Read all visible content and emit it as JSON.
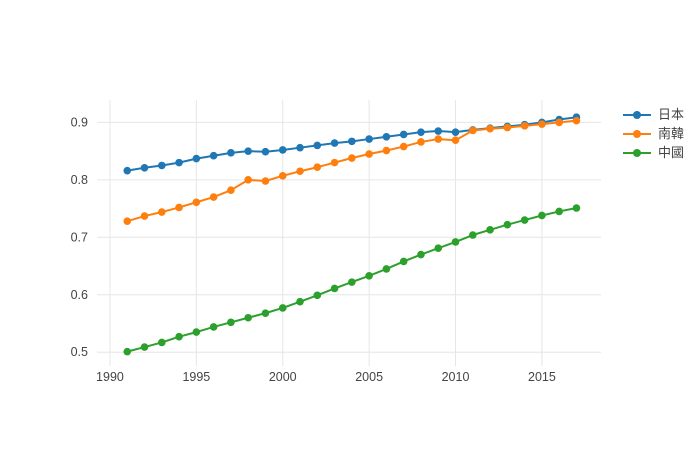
{
  "chart_data": {
    "type": "line",
    "title": "",
    "xlabel": "",
    "ylabel": "",
    "grid": true,
    "legend_position": "right",
    "x_ticks": [
      1990,
      1995,
      2000,
      2005,
      2010,
      2015
    ],
    "y_ticks": [
      0.5,
      0.6,
      0.7,
      0.8,
      0.9
    ],
    "x_range": [
      1989.25,
      2018.42
    ],
    "y_range": [
      0.476,
      0.939
    ],
    "grid_color": "#e6e6e6",
    "tick_color": "#444444",
    "x": [
      1991,
      1992,
      1993,
      1994,
      1995,
      1996,
      1997,
      1998,
      1999,
      2000,
      2001,
      2002,
      2003,
      2004,
      2005,
      2006,
      2007,
      2008,
      2009,
      2010,
      2011,
      2012,
      2013,
      2014,
      2015,
      2016,
      2017
    ],
    "series": [
      {
        "id": "japan",
        "name": "日本",
        "color": "#1f77b4",
        "values": [
          0.816,
          0.821,
          0.825,
          0.83,
          0.837,
          0.842,
          0.847,
          0.85,
          0.849,
          0.852,
          0.856,
          0.86,
          0.864,
          0.867,
          0.871,
          0.875,
          0.879,
          0.883,
          0.885,
          0.883,
          0.887,
          0.89,
          0.893,
          0.896,
          0.9,
          0.905,
          0.909
        ]
      },
      {
        "id": "south-korea",
        "name": "南韓",
        "color": "#ff7f0e",
        "values": [
          0.728,
          0.737,
          0.744,
          0.752,
          0.761,
          0.77,
          0.782,
          0.8,
          0.798,
          0.807,
          0.815,
          0.822,
          0.83,
          0.838,
          0.845,
          0.851,
          0.858,
          0.866,
          0.871,
          0.869,
          0.886,
          0.889,
          0.891,
          0.894,
          0.897,
          0.9,
          0.903
        ]
      },
      {
        "id": "china",
        "name": "中國",
        "color": "#2ca02c",
        "values": [
          0.501,
          0.509,
          0.517,
          0.527,
          0.535,
          0.544,
          0.552,
          0.56,
          0.568,
          0.577,
          0.588,
          0.599,
          0.611,
          0.622,
          0.633,
          0.645,
          0.658,
          0.67,
          0.681,
          0.692,
          0.704,
          0.713,
          0.722,
          0.73,
          0.738,
          0.745,
          0.751
        ]
      }
    ]
  }
}
